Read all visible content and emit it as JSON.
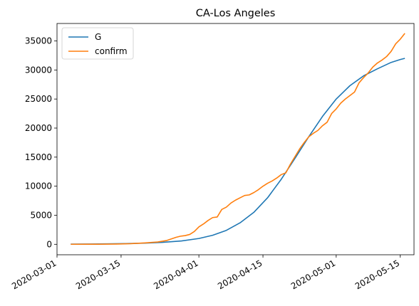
{
  "chart_data": {
    "type": "line",
    "title": "CA-Los Angeles",
    "xlabel": "",
    "ylabel": "",
    "x_type": "date",
    "xlim": [
      "2020-03-01",
      "2020-05-18"
    ],
    "ylim": [
      -1800,
      38000
    ],
    "x_ticks": [
      "2020-03-01",
      "2020-03-15",
      "2020-04-01",
      "2020-04-15",
      "2020-05-01",
      "2020-05-15"
    ],
    "y_ticks": [
      0,
      5000,
      10000,
      15000,
      20000,
      25000,
      30000,
      35000
    ],
    "grid": false,
    "legend_position": "top-left",
    "series": [
      {
        "name": "G",
        "color": "#1f77b4",
        "points": [
          [
            "2020-03-04",
            30
          ],
          [
            "2020-03-08",
            45
          ],
          [
            "2020-03-12",
            70
          ],
          [
            "2020-03-16",
            120
          ],
          [
            "2020-03-20",
            200
          ],
          [
            "2020-03-24",
            330
          ],
          [
            "2020-03-28",
            560
          ],
          [
            "2020-04-01",
            1000
          ],
          [
            "2020-04-04",
            1550
          ],
          [
            "2020-04-07",
            2400
          ],
          [
            "2020-04-10",
            3700
          ],
          [
            "2020-04-13",
            5500
          ],
          [
            "2020-04-16",
            8000
          ],
          [
            "2020-04-19",
            11200
          ],
          [
            "2020-04-22",
            14800
          ],
          [
            "2020-04-25",
            18500
          ],
          [
            "2020-04-28",
            22000
          ],
          [
            "2020-05-01",
            25000
          ],
          [
            "2020-05-04",
            27300
          ],
          [
            "2020-05-07",
            29000
          ],
          [
            "2020-05-10",
            30200
          ],
          [
            "2020-05-13",
            31300
          ],
          [
            "2020-05-15",
            31800
          ],
          [
            "2020-05-16",
            32000
          ]
        ]
      },
      {
        "name": "confirm",
        "color": "#ff7f0e",
        "points": [
          [
            "2020-03-04",
            7
          ],
          [
            "2020-03-10",
            20
          ],
          [
            "2020-03-14",
            40
          ],
          [
            "2020-03-17",
            100
          ],
          [
            "2020-03-20",
            230
          ],
          [
            "2020-03-23",
            400
          ],
          [
            "2020-03-25",
            660
          ],
          [
            "2020-03-27",
            1200
          ],
          [
            "2020-03-28",
            1400
          ],
          [
            "2020-03-29",
            1500
          ],
          [
            "2020-03-30",
            1700
          ],
          [
            "2020-03-31",
            2200
          ],
          [
            "2020-04-01",
            3000
          ],
          [
            "2020-04-02",
            3500
          ],
          [
            "2020-04-03",
            4100
          ],
          [
            "2020-04-04",
            4600
          ],
          [
            "2020-04-05",
            4700
          ],
          [
            "2020-04-06",
            6000
          ],
          [
            "2020-04-07",
            6400
          ],
          [
            "2020-04-08",
            7100
          ],
          [
            "2020-04-09",
            7600
          ],
          [
            "2020-04-10",
            8000
          ],
          [
            "2020-04-11",
            8400
          ],
          [
            "2020-04-12",
            8500
          ],
          [
            "2020-04-13",
            8900
          ],
          [
            "2020-04-14",
            9400
          ],
          [
            "2020-04-15",
            10000
          ],
          [
            "2020-04-16",
            10500
          ],
          [
            "2020-04-17",
            10900
          ],
          [
            "2020-04-18",
            11400
          ],
          [
            "2020-04-19",
            12000
          ],
          [
            "2020-04-20",
            12300
          ],
          [
            "2020-04-21",
            13800
          ],
          [
            "2020-04-22",
            15100
          ],
          [
            "2020-04-23",
            16400
          ],
          [
            "2020-04-24",
            17500
          ],
          [
            "2020-04-25",
            18500
          ],
          [
            "2020-04-26",
            19100
          ],
          [
            "2020-04-27",
            19600
          ],
          [
            "2020-04-28",
            20400
          ],
          [
            "2020-04-29",
            21000
          ],
          [
            "2020-04-30",
            22500
          ],
          [
            "2020-05-01",
            23300
          ],
          [
            "2020-05-02",
            24300
          ],
          [
            "2020-05-03",
            25000
          ],
          [
            "2020-05-04",
            25600
          ],
          [
            "2020-05-05",
            26200
          ],
          [
            "2020-05-06",
            27800
          ],
          [
            "2020-05-07",
            28700
          ],
          [
            "2020-05-08",
            29500
          ],
          [
            "2020-05-09",
            30500
          ],
          [
            "2020-05-10",
            31200
          ],
          [
            "2020-05-11",
            31700
          ],
          [
            "2020-05-12",
            32300
          ],
          [
            "2020-05-13",
            33200
          ],
          [
            "2020-05-14",
            34500
          ],
          [
            "2020-05-15",
            35300
          ],
          [
            "2020-05-16",
            36300
          ]
        ]
      }
    ]
  }
}
